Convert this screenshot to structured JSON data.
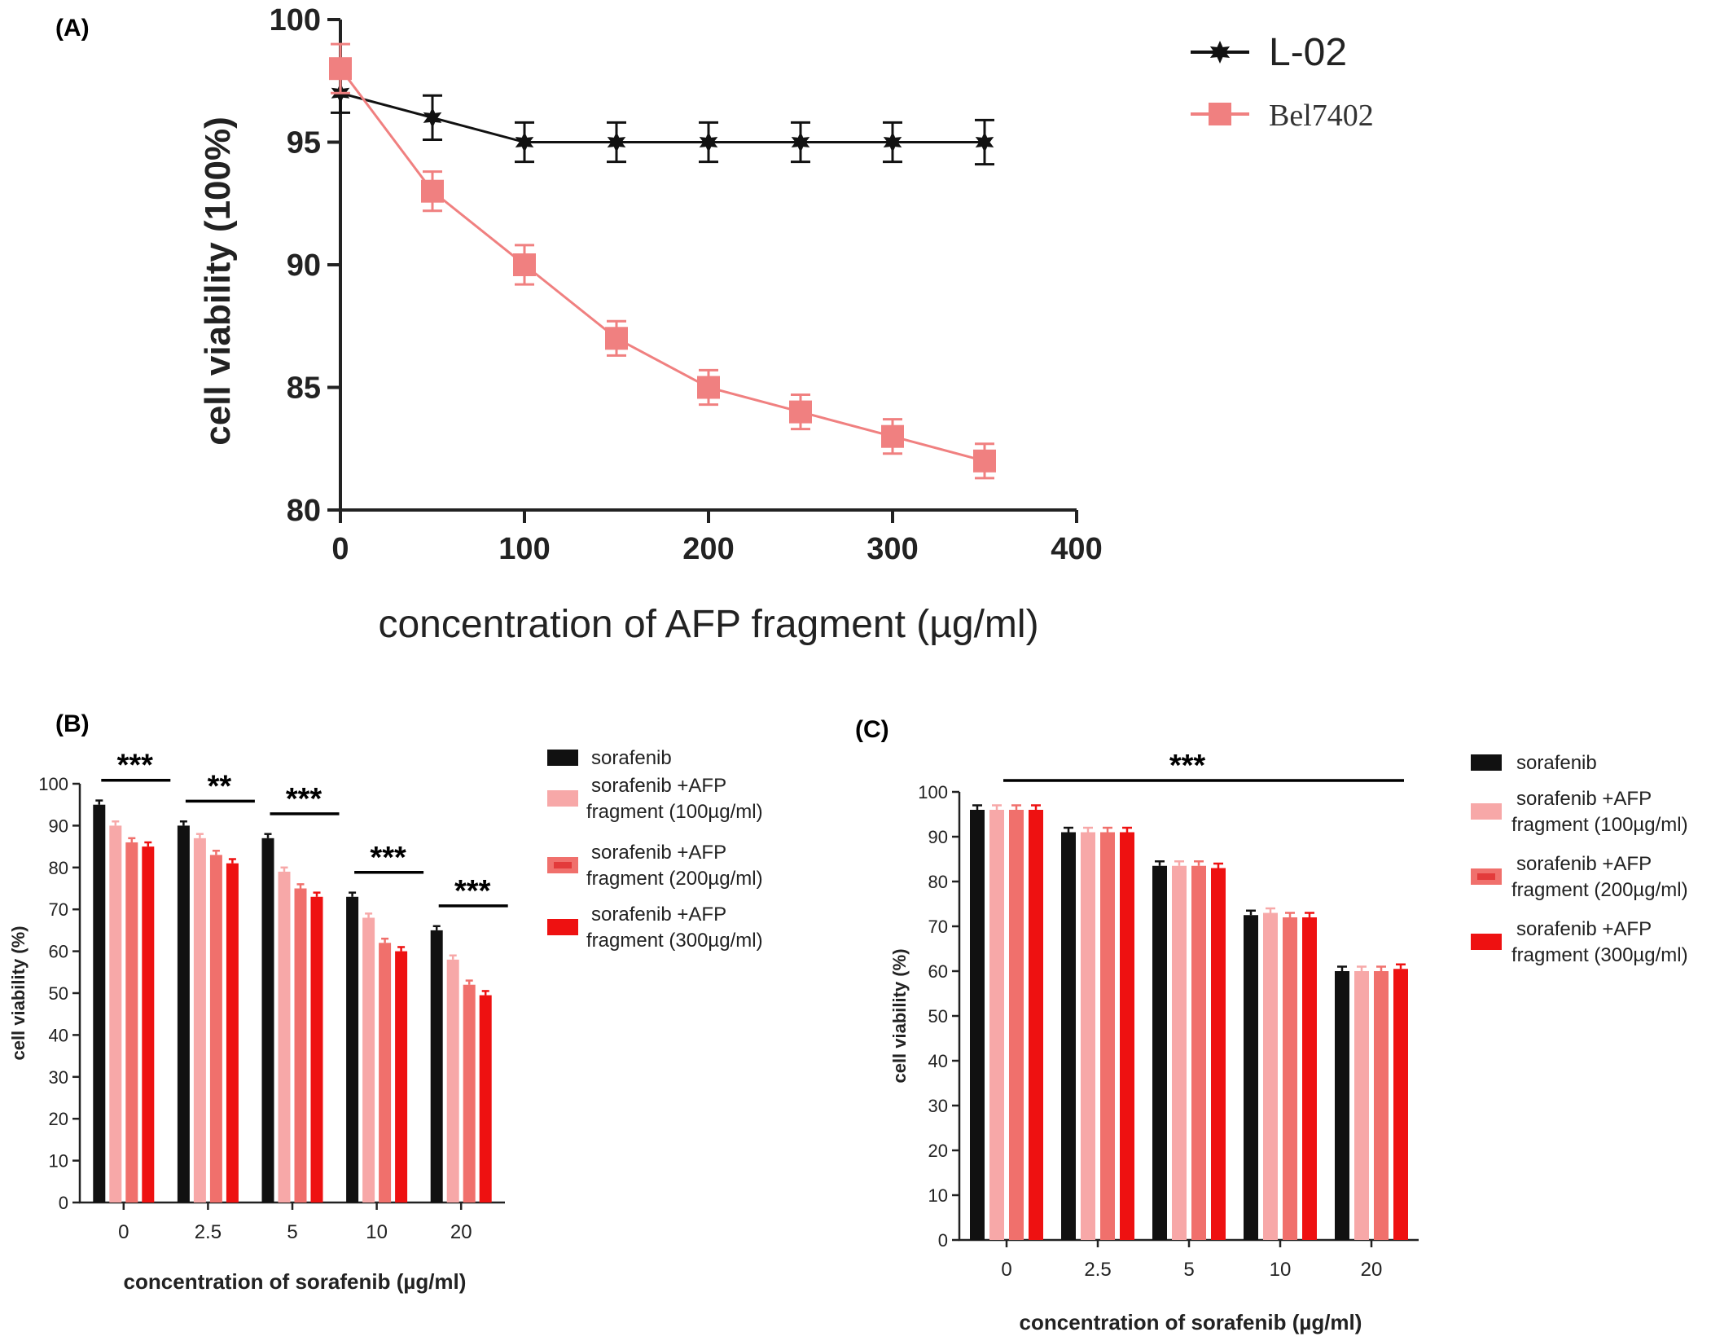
{
  "panels": {
    "A": "(A)",
    "B": "(B)",
    "C": "(C)"
  },
  "colors": {
    "L-02": "#111111",
    "Bel7402": "#f08080",
    "sorafenib": "#111111",
    "afp100": "#f7a8a8",
    "afp200": "#f0706c",
    "afp300": "#ee1111"
  },
  "chart_data": [
    {
      "id": "A",
      "type": "line",
      "xlabel": "concentration of  AFP fragment (µg/ml)",
      "ylabel": "cell viability (100%)",
      "xlim": [
        0,
        400
      ],
      "ylim": [
        80,
        100
      ],
      "xticks": [
        "0",
        "100",
        "200",
        "300",
        "400"
      ],
      "yticks": [
        "80",
        "85",
        "90",
        "95",
        "100"
      ],
      "legend_position": "top-right",
      "x": [
        0,
        50,
        100,
        150,
        200,
        250,
        300,
        350
      ],
      "series": [
        {
          "name": "L-02",
          "marker": "star",
          "values": [
            97,
            96,
            95,
            95,
            95,
            95,
            95,
            95
          ],
          "error": [
            0.8,
            0.9,
            0.8,
            0.8,
            0.8,
            0.8,
            0.8,
            0.9
          ]
        },
        {
          "name": "Bel7402",
          "marker": "square",
          "values": [
            98,
            93,
            90,
            87,
            85,
            84,
            83,
            82
          ],
          "error": [
            1.0,
            0.8,
            0.8,
            0.7,
            0.7,
            0.7,
            0.7,
            0.7
          ]
        }
      ]
    },
    {
      "id": "B",
      "type": "bar",
      "xlabel": "concentration of sorafenib (µg/ml)",
      "ylabel": "cell viability (%)",
      "ylim": [
        0,
        100
      ],
      "yticks": [
        "0",
        "10",
        "20",
        "30",
        "40",
        "50",
        "60",
        "70",
        "80",
        "90",
        "100"
      ],
      "categories": [
        "0",
        "2.5",
        "5",
        "10",
        "20"
      ],
      "significance": [
        "***",
        "**",
        "***",
        "***",
        "***"
      ],
      "series": [
        {
          "name": "sorafenib",
          "legend_lines": [
            "sorafenib"
          ],
          "values": [
            95,
            90,
            87,
            73,
            65
          ]
        },
        {
          "name": "sorafenib +AFP fragment (100µg/ml)",
          "legend_lines": [
            "sorafenib +AFP",
            "fragment (100µg/ml)"
          ],
          "values": [
            90,
            87,
            79,
            68,
            58
          ]
        },
        {
          "name": "sorafenib +AFP fragment (200µg/ml)",
          "legend_lines": [
            "sorafenib +AFP",
            "fragment (200µg/ml)"
          ],
          "values": [
            86,
            83,
            75,
            62,
            52
          ]
        },
        {
          "name": "sorafenib +AFP fragment (300µg/ml)",
          "legend_lines": [
            "sorafenib +AFP",
            "fragment (300µg/ml)"
          ],
          "values": [
            85,
            81,
            73,
            60,
            49.5
          ]
        }
      ]
    },
    {
      "id": "C",
      "type": "bar",
      "xlabel": "concentration of sorafenib (µg/ml)",
      "ylabel": "cell viability (%)",
      "ylim": [
        0,
        100
      ],
      "yticks": [
        "0",
        "10",
        "20",
        "30",
        "40",
        "50",
        "60",
        "70",
        "80",
        "90",
        "100"
      ],
      "categories": [
        "0",
        "2.5",
        "5",
        "10",
        "20"
      ],
      "significance": [
        "***"
      ],
      "series": [
        {
          "name": "sorafenib",
          "legend_lines": [
            "sorafenib"
          ],
          "values": [
            96,
            91,
            83.5,
            72.5,
            60
          ]
        },
        {
          "name": "sorafenib +AFP fragment (100µg/ml)",
          "legend_lines": [
            "sorafenib +AFP",
            "fragment (100µg/ml)"
          ],
          "values": [
            96,
            91,
            83.5,
            73,
            60
          ]
        },
        {
          "name": "sorafenib +AFP fragment (200µg/ml)",
          "legend_lines": [
            "sorafenib +AFP",
            "fragment (200µg/ml)"
          ],
          "values": [
            96,
            91,
            83.5,
            72,
            60
          ]
        },
        {
          "name": "sorafenib +AFP fragment (300µg/ml)",
          "legend_lines": [
            "sorafenib +AFP",
            "fragment (300µg/ml)"
          ],
          "values": [
            96,
            91,
            83,
            72,
            60.5
          ]
        }
      ]
    }
  ]
}
